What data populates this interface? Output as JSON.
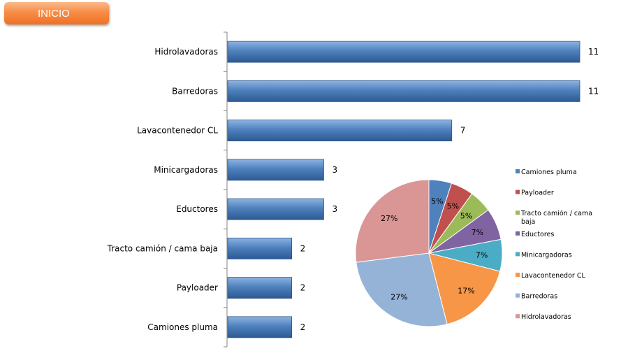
{
  "header": {
    "inicio_label": "INICIO"
  },
  "chart_data": [
    {
      "type": "bar",
      "orientation": "horizontal",
      "categories": [
        "Hidrolavadoras",
        "Barredoras",
        "Lavacontenedor CL",
        "Minicargadoras",
        "Eductores",
        "Tracto camión / cama baja",
        "Payloader",
        "Camiones pluma"
      ],
      "values": [
        11,
        11,
        7,
        3,
        3,
        2,
        2,
        2
      ],
      "xlim": [
        0,
        11
      ],
      "grid": false,
      "color": "#4f81bd"
    },
    {
      "type": "pie",
      "labels": [
        "Camiones pluma",
        "Payloader",
        "Tracto camión / cama baja",
        "Eductores",
        "Minicargadoras",
        "Lavacontenedor CL",
        "Barredoras",
        "Hidrolavadoras"
      ],
      "values": [
        5,
        5,
        5,
        7,
        7,
        17,
        27,
        27
      ],
      "display_labels": [
        "5%",
        "5%",
        "5%",
        "7%",
        "7%",
        "17%",
        "27%",
        "27%"
      ],
      "colors": [
        "#4f81bd",
        "#c0504d",
        "#9bbb59",
        "#8064a2",
        "#4bacc6",
        "#f79646",
        "#95b3d7",
        "#d99694"
      ],
      "legend": "right"
    }
  ]
}
